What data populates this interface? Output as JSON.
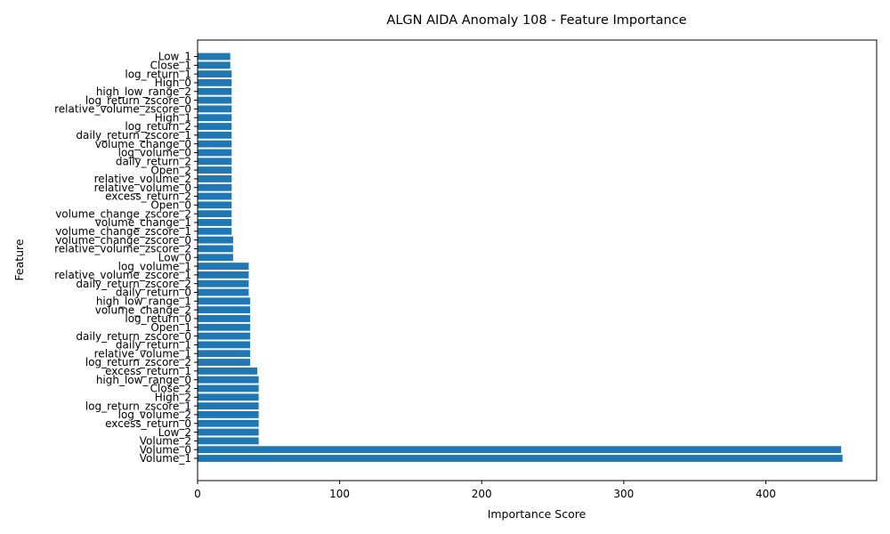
{
  "chart_data": {
    "type": "bar",
    "orientation": "horizontal",
    "title": "ALGN AIDA Anomaly 108 - Feature Importance",
    "xlabel": "Importance Score",
    "ylabel": "Feature",
    "xlim": [
      0,
      478
    ],
    "xticks": [
      0,
      100,
      200,
      300,
      400
    ],
    "grid": false,
    "bar_color": "#1f77b4",
    "categories": [
      "Volume_1",
      "Volume_0",
      "Volume_2",
      "Low_2",
      "excess_return_0",
      "log_volume_2",
      "log_return_zscore_1",
      "High_2",
      "Close_2",
      "high_low_range_0",
      "excess_return_1",
      "log_return_zscore_2",
      "relative_volume_1",
      "daily_return_1",
      "daily_return_zscore_0",
      "Open_1",
      "log_return_0",
      "volume_change_2",
      "high_low_range_1",
      "daily_return_0",
      "daily_return_zscore_2",
      "relative_volume_zscore_1",
      "log_volume_1",
      "Low_0",
      "relative_volume_zscore_2",
      "volume_change_zscore_0",
      "volume_change_zscore_1",
      "volume_change_1",
      "volume_change_zscore_2",
      "Open_0",
      "excess_return_2",
      "relative_volume_0",
      "relative_volume_2",
      "Open_2",
      "daily_return_2",
      "log_volume_0",
      "volume_change_0",
      "daily_return_zscore_1",
      "log_return_2",
      "High_1",
      "relative_volume_zscore_0",
      "log_return_zscore_0",
      "high_low_range_2",
      "High_0",
      "log_return_1",
      "Close_1",
      "Low_1"
    ],
    "values": [
      454,
      453,
      43,
      43,
      43,
      43,
      43,
      43,
      43,
      43,
      42,
      37,
      37,
      37,
      37,
      37,
      37,
      37,
      37,
      36,
      36,
      36,
      36,
      25,
      25,
      25,
      24,
      24,
      24,
      24,
      24,
      24,
      24,
      24,
      24,
      24,
      24,
      24,
      24,
      24,
      24,
      24,
      24,
      24,
      24,
      23,
      23
    ]
  }
}
